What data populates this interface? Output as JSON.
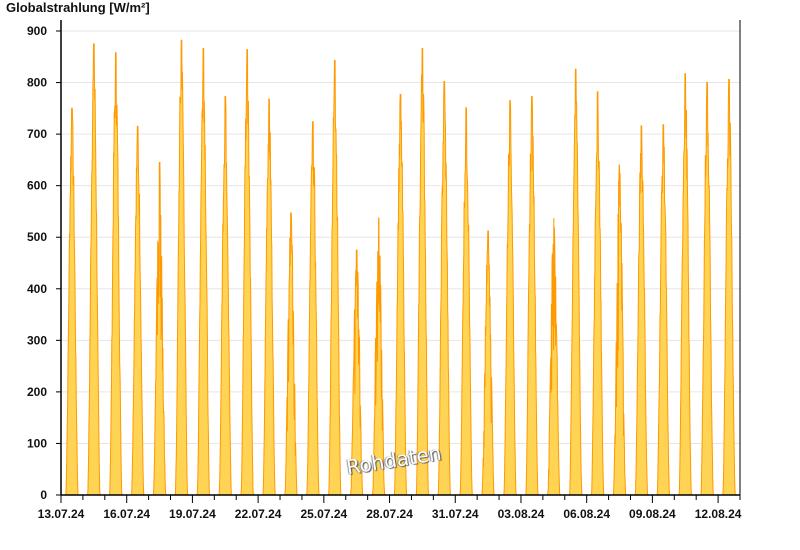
{
  "chart_data": {
    "type": "area",
    "title": "Globalstrahlung [W/m²]",
    "xlabel": "",
    "ylabel": "",
    "ylim": [
      0,
      900
    ],
    "yticks": [
      0,
      100,
      200,
      300,
      400,
      500,
      600,
      700,
      800,
      900
    ],
    "xlim": [
      "13.07.24",
      "13.08.24"
    ],
    "xtick_labels": [
      "13.07.24",
      "16.07.24",
      "19.07.24",
      "22.07.24",
      "25.07.24",
      "28.07.24",
      "31.07.24",
      "03.08.24",
      "06.08.24",
      "09.08.24",
      "12.08.24"
    ],
    "grid": true,
    "watermark": "Rohdaten",
    "colors": {
      "fill": "#ffd454",
      "line": "#ff9900",
      "grid": "#e6e6e6"
    },
    "days": [
      "13.07.24",
      "14.07.24",
      "15.07.24",
      "16.07.24",
      "17.07.24",
      "18.07.24",
      "19.07.24",
      "20.07.24",
      "21.07.24",
      "22.07.24",
      "23.07.24",
      "24.07.24",
      "25.07.24",
      "26.07.24",
      "27.07.24",
      "28.07.24",
      "29.07.24",
      "30.07.24",
      "31.07.24",
      "01.08.24",
      "02.08.24",
      "03.08.24",
      "04.08.24",
      "05.08.24",
      "06.08.24",
      "07.08.24",
      "08.08.24",
      "09.08.24",
      "10.08.24",
      "11.08.24",
      "12.08.24"
    ],
    "daily_max": [
      750,
      875,
      858,
      715,
      645,
      882,
      866,
      773,
      864,
      768,
      547,
      724,
      843,
      475,
      537,
      777,
      866,
      802,
      751,
      512,
      765,
      773,
      537,
      826,
      782,
      640,
      716,
      718,
      817,
      800,
      806
    ]
  }
}
